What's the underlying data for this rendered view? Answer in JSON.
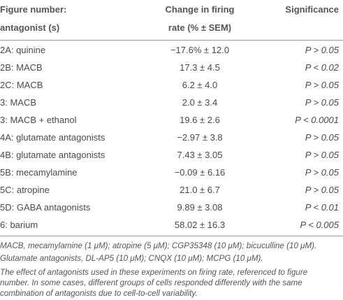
{
  "table": {
    "header": [
      [
        "Figure number:",
        "antagonist (s)"
      ],
      [
        "Change in firing",
        "rate (% ± SEM)"
      ],
      [
        "Significance"
      ]
    ],
    "rows": [
      [
        "2A: quinine",
        "−17.6% ± 12.0",
        "P > 0.05"
      ],
      [
        "2B: MACB",
        "17.3 ± 4.5",
        "P < 0.02"
      ],
      [
        "2C: MACB",
        "6.2 ± 4.0",
        "P > 0.05"
      ],
      [
        "3: MACB",
        "2.0 ± 3.4",
        "P > 0.05"
      ],
      [
        "3: MACB + ethanol",
        "19.6 ± 2.6",
        "P < 0.0001"
      ],
      [
        "4A: glutamate antagonists",
        "−2.97 ± 3.8",
        "P > 0.05"
      ],
      [
        "4B: glutamate antagonists",
        "7.43 ± 3.05",
        "P > 0.05"
      ],
      [
        "5B: mecamylamine",
        "−0.09 ± 6.16",
        "P > 0.05"
      ],
      [
        "5C: atropine",
        "21.0 ± 6.7",
        "P > 0.05"
      ],
      [
        "5D: GABA antagonists",
        "9.89 ± 3.08",
        "P < 0.01"
      ],
      [
        "6: barium",
        "58.02 ± 16.3",
        "P < 0.005"
      ]
    ],
    "footnotes": [
      "MACB, mecamylamine (1 μM); atropine (5 μM); CGP35348 (10 μM); bicuculline (10 μM).",
      "Glutamate antagonists, DL-AP5 (10 μM); CNQX (10 μM); MCPG (10 μM).",
      "The effect of antagonists used in these experiments on firing rate, referenced to figure",
      "number. In some cases, different groups of cells responded differently with the same",
      "combination of antagonists due to cell-to-cell variability."
    ]
  }
}
